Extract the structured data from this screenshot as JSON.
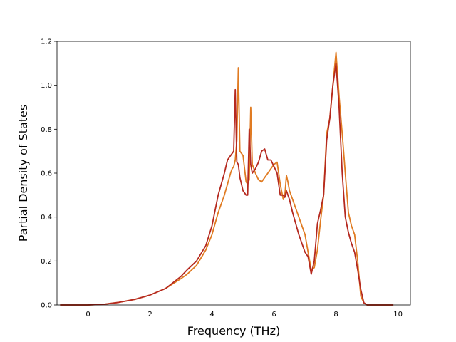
{
  "chart_data": {
    "type": "line",
    "title": "",
    "xlabel": "Frequency (THz)",
    "ylabel": "Partial Density of States",
    "xlim": [
      -1.0,
      10.4
    ],
    "ylim": [
      0.0,
      1.2
    ],
    "xticks": [
      0,
      2,
      4,
      6,
      8,
      10
    ],
    "xtick_labels": [
      "0",
      "2",
      "4",
      "6",
      "8",
      "10"
    ],
    "yticks": [
      0.0,
      0.2,
      0.4,
      0.6,
      0.8,
      1.0,
      1.2
    ],
    "ytick_labels": [
      "0.0",
      "0.2",
      "0.4",
      "0.6",
      "0.8",
      "1.0",
      "1.2"
    ],
    "grid": false,
    "legend": "none",
    "series": [
      {
        "color": "#e07b22",
        "x": [
          -0.9,
          0,
          0.5,
          1,
          1.5,
          2,
          2.5,
          3,
          3.2,
          3.5,
          3.8,
          4,
          4.2,
          4.4,
          4.5,
          4.6,
          4.65,
          4.7,
          4.75,
          4.8,
          4.85,
          4.9,
          5,
          5.1,
          5.15,
          5.2,
          5.25,
          5.3,
          5.4,
          5.5,
          5.6,
          5.7,
          5.8,
          5.9,
          6,
          6.1,
          6.2,
          6.3,
          6.35,
          6.4,
          6.45,
          6.5,
          6.6,
          6.8,
          7,
          7.1,
          7.2,
          7.3,
          7.4,
          7.5,
          7.6,
          7.7,
          7.8,
          7.9,
          8,
          8.05,
          8.1,
          8.2,
          8.3,
          8.4,
          8.5,
          8.6,
          8.7,
          8.8,
          8.9,
          9,
          9.1,
          9.3,
          9.85
        ],
        "values": [
          0,
          0,
          0.003,
          0.012,
          0.025,
          0.045,
          0.075,
          0.12,
          0.14,
          0.18,
          0.25,
          0.32,
          0.42,
          0.5,
          0.55,
          0.6,
          0.62,
          0.63,
          0.66,
          0.75,
          1.08,
          0.7,
          0.68,
          0.56,
          0.55,
          0.57,
          0.9,
          0.64,
          0.6,
          0.57,
          0.56,
          0.58,
          0.6,
          0.62,
          0.64,
          0.65,
          0.55,
          0.48,
          0.5,
          0.59,
          0.56,
          0.52,
          0.48,
          0.4,
          0.32,
          0.24,
          0.16,
          0.17,
          0.25,
          0.38,
          0.5,
          0.78,
          0.85,
          1.0,
          1.15,
          1.05,
          0.95,
          0.78,
          0.6,
          0.42,
          0.36,
          0.32,
          0.2,
          0.04,
          0.01,
          0,
          0,
          0,
          0
        ]
      },
      {
        "color": "#b5291f",
        "x": [
          -0.9,
          0,
          0.5,
          1,
          1.5,
          2,
          2.5,
          3,
          3.2,
          3.5,
          3.8,
          4,
          4.2,
          4.4,
          4.5,
          4.6,
          4.65,
          4.7,
          4.75,
          4.8,
          4.85,
          4.9,
          5,
          5.1,
          5.15,
          5.2,
          5.25,
          5.3,
          5.4,
          5.5,
          5.6,
          5.7,
          5.8,
          5.9,
          6,
          6.1,
          6.2,
          6.3,
          6.35,
          6.4,
          6.45,
          6.5,
          6.6,
          6.8,
          7,
          7.1,
          7.2,
          7.3,
          7.4,
          7.5,
          7.6,
          7.7,
          7.8,
          7.9,
          8,
          8.05,
          8.1,
          8.2,
          8.3,
          8.4,
          8.5,
          8.6,
          8.7,
          8.8,
          8.9,
          9,
          9.1,
          9.3,
          9.85
        ],
        "values": [
          0,
          0,
          0.003,
          0.012,
          0.025,
          0.045,
          0.075,
          0.13,
          0.16,
          0.2,
          0.27,
          0.36,
          0.5,
          0.6,
          0.66,
          0.68,
          0.69,
          0.7,
          0.98,
          0.65,
          0.64,
          0.58,
          0.52,
          0.5,
          0.5,
          0.8,
          0.64,
          0.6,
          0.62,
          0.65,
          0.7,
          0.71,
          0.66,
          0.66,
          0.63,
          0.6,
          0.5,
          0.5,
          0.49,
          0.52,
          0.5,
          0.48,
          0.42,
          0.32,
          0.24,
          0.22,
          0.14,
          0.2,
          0.37,
          0.43,
          0.5,
          0.75,
          0.85,
          1.0,
          1.1,
          1.0,
          0.9,
          0.6,
          0.4,
          0.33,
          0.28,
          0.24,
          0.16,
          0.07,
          0.01,
          0,
          0,
          0,
          0
        ]
      }
    ]
  }
}
